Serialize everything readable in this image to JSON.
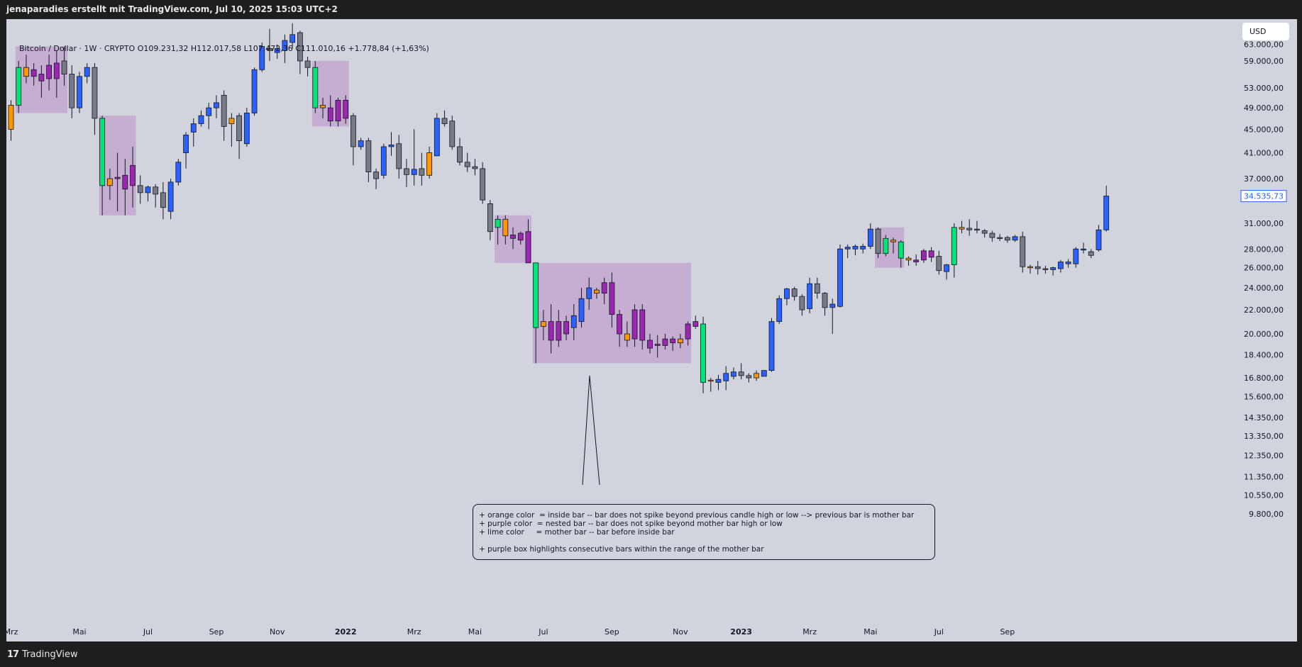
{
  "header": {
    "title": "jenaparadies erstellt mit TradingView.com, Jul 10, 2025 15:03 UTC+2"
  },
  "legend": {
    "symbol": "Bitcoin / Dollar · 1W · CRYPTO",
    "open": "O109.231,32",
    "high": "H112.017,58",
    "low": "L107.472,36",
    "close": "C111.010,16",
    "change": "+1.778,84 (+1,63%)"
  },
  "currency_button": "USD",
  "footer": {
    "logo_mark": "17",
    "logo_text": "TradingView"
  },
  "note": {
    "lines": [
      "+ orange color  = inside bar -- bar does not spike beyond previous candle high or low --> previous bar is mother bar",
      "+ purple color  = nested bar -- bar does not spike beyond mother bar high or low",
      "+ lime color     = mother bar -- bar before inside bar",
      "+ purple box highlights consecutive bars within the range of the mother bar"
    ]
  },
  "colors": {
    "background": "#d1d4dc",
    "bull": "#2962ff",
    "bear": "#787b86",
    "inside": "#ff9800",
    "nested": "#9c27b0",
    "mother": "#00e676",
    "box": "rgba(156,39,176,0.22)",
    "price_tag": "#2962ff"
  },
  "chart_data": {
    "type": "candlestick",
    "timeframe": "1W",
    "scale": "log",
    "y_ticks": [
      "63.000,00",
      "59.000,00",
      "53.000,00",
      "49.000,00",
      "45.000,00",
      "41.000,00",
      "37.000,00",
      "31.000,00",
      "28.000,00",
      "26.000,00",
      "24.000,00",
      "22.000,00",
      "20.000,00",
      "18.400,00",
      "16.800,00",
      "15.600,00",
      "14.350,00",
      "13.350,00",
      "12.350,00",
      "11.350,00",
      "10.550,00",
      "9.800,00"
    ],
    "y_tick_values": [
      63000,
      59000,
      53000,
      49000,
      45000,
      41000,
      37000,
      31000,
      28000,
      26000,
      24000,
      22000,
      20000,
      18400,
      16800,
      15600,
      14350,
      13350,
      12350,
      11350,
      10550,
      9800
    ],
    "last_price": "34.535,73",
    "last_price_value": 34535.73,
    "x_ticks": [
      {
        "label": "Mrz",
        "index": 0,
        "bold": false
      },
      {
        "label": "Mai",
        "index": 9,
        "bold": false
      },
      {
        "label": "Jul",
        "index": 18,
        "bold": false
      },
      {
        "label": "Sep",
        "index": 27,
        "bold": false
      },
      {
        "label": "Nov",
        "index": 35,
        "bold": false
      },
      {
        "label": "2022",
        "index": 44,
        "bold": true
      },
      {
        "label": "Mrz",
        "index": 53,
        "bold": false
      },
      {
        "label": "Mai",
        "index": 61,
        "bold": false
      },
      {
        "label": "Jul",
        "index": 70,
        "bold": false
      },
      {
        "label": "Sep",
        "index": 79,
        "bold": false
      },
      {
        "label": "Nov",
        "index": 88,
        "bold": false
      },
      {
        "label": "2023",
        "index": 96,
        "bold": true
      },
      {
        "label": "Mrz",
        "index": 105,
        "bold": false
      },
      {
        "label": "Mai",
        "index": 113,
        "bold": false
      },
      {
        "label": "Jul",
        "index": 122,
        "bold": false
      },
      {
        "label": "Sep",
        "index": 131,
        "bold": false
      }
    ],
    "candles": [
      [
        45000,
        49500,
        43000,
        50500,
        "inside"
      ],
      [
        49500,
        57500,
        48000,
        59000,
        "mother"
      ],
      [
        57500,
        55500,
        54000,
        60500,
        "inside"
      ],
      [
        55500,
        57000,
        53500,
        58500,
        "nested"
      ],
      [
        56000,
        54500,
        51000,
        58000,
        "nested"
      ],
      [
        55000,
        58000,
        52500,
        60500,
        "nested"
      ],
      [
        58500,
        55000,
        51000,
        61500,
        "nested"
      ],
      [
        59000,
        56000,
        53500,
        62500,
        "bear"
      ],
      [
        56000,
        49000,
        47000,
        58000,
        "bear"
      ],
      [
        49000,
        55500,
        48000,
        56500,
        "bull"
      ],
      [
        55500,
        57500,
        54000,
        58500,
        "bull"
      ],
      [
        57500,
        47000,
        44000,
        58500,
        "bear"
      ],
      [
        47000,
        36000,
        32000,
        47500,
        "mother"
      ],
      [
        36000,
        37000,
        34000,
        38500,
        "inside"
      ],
      [
        37000,
        37200,
        32500,
        41000,
        "nested"
      ],
      [
        37500,
        35500,
        32000,
        40000,
        "nested"
      ],
      [
        39000,
        36000,
        33000,
        42000,
        "nested"
      ],
      [
        36000,
        35000,
        33500,
        37500,
        "bear"
      ],
      [
        35000,
        35800,
        33800,
        36000,
        "bull"
      ],
      [
        35800,
        34800,
        33000,
        36200,
        "bear"
      ],
      [
        35000,
        33000,
        31500,
        36500,
        "bear"
      ],
      [
        32500,
        36500,
        31500,
        37000,
        "bull"
      ],
      [
        36500,
        39500,
        36000,
        40000,
        "bull"
      ],
      [
        41000,
        44000,
        38500,
        44500,
        "bull"
      ],
      [
        44500,
        46000,
        42000,
        47000,
        "bull"
      ],
      [
        46000,
        47500,
        45500,
        48500,
        "bull"
      ],
      [
        47500,
        49000,
        45000,
        50000,
        "bull"
      ],
      [
        49000,
        50000,
        47000,
        51500,
        "bull"
      ],
      [
        51500,
        45500,
        43000,
        52500,
        "bear"
      ],
      [
        46000,
        47000,
        42000,
        48000,
        "inside"
      ],
      [
        47500,
        43000,
        40000,
        48000,
        "bear"
      ],
      [
        42500,
        48000,
        42000,
        49000,
        "bull"
      ],
      [
        48000,
        57000,
        47500,
        57500,
        "bull"
      ],
      [
        57000,
        62500,
        56500,
        63500,
        "bull"
      ],
      [
        62000,
        61500,
        59000,
        67000,
        "bear"
      ],
      [
        61000,
        62000,
        59500,
        63000,
        "bull"
      ],
      [
        61500,
        64000,
        58500,
        65500,
        "bull"
      ],
      [
        63500,
        65500,
        62000,
        68500,
        "bull"
      ],
      [
        66000,
        59000,
        56000,
        66500,
        "bear"
      ],
      [
        59000,
        57500,
        55500,
        60000,
        "bear"
      ],
      [
        57500,
        49000,
        48000,
        59000,
        "mother"
      ],
      [
        49000,
        49500,
        47000,
        51000,
        "inside"
      ],
      [
        49000,
        46500,
        45500,
        51500,
        "nested"
      ],
      [
        46500,
        50500,
        45500,
        51000,
        "nested"
      ],
      [
        50500,
        47000,
        46000,
        51500,
        "nested"
      ],
      [
        47500,
        42000,
        39000,
        48000,
        "bear"
      ],
      [
        42000,
        43000,
        41500,
        43500,
        "bull"
      ],
      [
        43000,
        38000,
        36500,
        43500,
        "bear"
      ],
      [
        38000,
        37000,
        35500,
        38500,
        "bear"
      ],
      [
        37500,
        42000,
        37000,
        42500,
        "bull"
      ],
      [
        42000,
        42300,
        40500,
        44500,
        "bull"
      ],
      [
        42500,
        38500,
        37000,
        44000,
        "bear"
      ],
      [
        38500,
        37600,
        35800,
        40000,
        "bear"
      ],
      [
        37600,
        38400,
        36000,
        45000,
        "bull"
      ],
      [
        38500,
        37500,
        36000,
        41000,
        "bear"
      ],
      [
        37500,
        41000,
        37000,
        42000,
        "inside"
      ],
      [
        40500,
        47000,
        40500,
        48000,
        "bull"
      ],
      [
        47000,
        46000,
        45500,
        48500,
        "bear"
      ],
      [
        46500,
        42000,
        41500,
        47500,
        "bear"
      ],
      [
        42000,
        39500,
        39000,
        43500,
        "bear"
      ],
      [
        39500,
        38800,
        38000,
        41000,
        "bear"
      ],
      [
        38800,
        38500,
        37500,
        40000,
        "bear"
      ],
      [
        38500,
        34000,
        33500,
        39500,
        "bear"
      ],
      [
        33500,
        30000,
        29000,
        34000,
        "bear"
      ],
      [
        30500,
        31500,
        28500,
        32000,
        "mother"
      ],
      [
        31500,
        29500,
        28500,
        32000,
        "inside"
      ],
      [
        29600,
        29200,
        28000,
        30500,
        "nested"
      ],
      [
        29000,
        29800,
        28500,
        30000,
        "nested"
      ],
      [
        30000,
        26500,
        26500,
        31500,
        "nested"
      ],
      [
        26500,
        20500,
        17800,
        26500,
        "mother"
      ],
      [
        20600,
        21000,
        19500,
        22000,
        "inside"
      ],
      [
        21000,
        19500,
        18500,
        22500,
        "nested"
      ],
      [
        19500,
        21000,
        19000,
        22000,
        "nested"
      ],
      [
        21000,
        20000,
        19500,
        21500,
        "nested"
      ],
      [
        20500,
        21500,
        19500,
        22500,
        "bull"
      ],
      [
        21000,
        23000,
        20500,
        24000,
        "bull"
      ],
      [
        23000,
        24000,
        22000,
        25000,
        "bull"
      ],
      [
        23500,
        23800,
        23000,
        24000,
        "inside"
      ],
      [
        23500,
        24500,
        22500,
        25000,
        "nested"
      ],
      [
        24500,
        21600,
        20500,
        25500,
        "nested"
      ],
      [
        21600,
        20000,
        19000,
        22000,
        "nested"
      ],
      [
        20000,
        19500,
        19000,
        21000,
        "inside"
      ],
      [
        19600,
        22000,
        19000,
        22500,
        "nested"
      ],
      [
        22000,
        19500,
        18800,
        22500,
        "nested"
      ],
      [
        19500,
        18900,
        18500,
        20000,
        "nested"
      ],
      [
        19200,
        19100,
        18200,
        19900,
        "nested"
      ],
      [
        19100,
        19600,
        18800,
        20000,
        "nested"
      ],
      [
        19600,
        19300,
        18700,
        19800,
        "nested"
      ],
      [
        19300,
        19600,
        18900,
        20000,
        "inside"
      ],
      [
        19600,
        20800,
        19100,
        21000,
        "nested"
      ],
      [
        20600,
        21000,
        20400,
        21500,
        "nested"
      ],
      [
        20800,
        16500,
        15800,
        21400,
        "mother"
      ],
      [
        16600,
        16650,
        15900,
        16800,
        "inside"
      ],
      [
        16700,
        16500,
        16000,
        17000,
        "bull"
      ],
      [
        16600,
        17100,
        16000,
        17600,
        "bull"
      ],
      [
        16900,
        17200,
        16700,
        17500,
        "bull"
      ],
      [
        17200,
        16950,
        16700,
        17800,
        "bear"
      ],
      [
        16950,
        16800,
        16500,
        17100,
        "bear"
      ],
      [
        16800,
        17100,
        16600,
        17300,
        "inside"
      ],
      [
        16900,
        17300,
        16900,
        17300,
        "bull"
      ],
      [
        17300,
        21000,
        17200,
        21300,
        "bull"
      ],
      [
        21000,
        23000,
        20800,
        23300,
        "bull"
      ],
      [
        23000,
        23900,
        22400,
        24000,
        "bull"
      ],
      [
        23900,
        23200,
        22800,
        24100,
        "bear"
      ],
      [
        23200,
        22000,
        21500,
        23400,
        "bear"
      ],
      [
        22100,
        24400,
        21700,
        25000,
        "bull"
      ],
      [
        24400,
        23500,
        23000,
        25000,
        "bear"
      ],
      [
        23500,
        22200,
        21500,
        23600,
        "bear"
      ],
      [
        22200,
        22500,
        20000,
        23000,
        "bull"
      ],
      [
        22300,
        28000,
        22200,
        28500,
        "bull"
      ],
      [
        28000,
        28200,
        27000,
        28500,
        "bull"
      ],
      [
        28300,
        28000,
        27300,
        28500,
        "bull"
      ],
      [
        28000,
        28300,
        27500,
        28600,
        "bull"
      ],
      [
        28300,
        30300,
        28000,
        31000,
        "bull"
      ],
      [
        30300,
        27500,
        27000,
        30500,
        "bear"
      ],
      [
        27500,
        29200,
        27200,
        29600,
        "mother"
      ],
      [
        29000,
        28800,
        27500,
        29300,
        "inside"
      ],
      [
        28800,
        27000,
        26000,
        29000,
        "mother"
      ],
      [
        27000,
        26800,
        26200,
        27200,
        "inside"
      ],
      [
        26600,
        26800,
        26200,
        27400,
        "nested"
      ],
      [
        26800,
        27800,
        26500,
        28000,
        "nested"
      ],
      [
        27800,
        27100,
        26600,
        28200,
        "nested"
      ],
      [
        27200,
        25700,
        25300,
        27800,
        "bear"
      ],
      [
        25600,
        26300,
        24800,
        26400,
        "bull"
      ],
      [
        26300,
        30500,
        25000,
        31000,
        "mother"
      ],
      [
        30500,
        30300,
        29800,
        31300,
        "inside"
      ],
      [
        30400,
        30200,
        29500,
        31500,
        "bear"
      ],
      [
        30300,
        30200,
        29800,
        31300,
        "bear"
      ],
      [
        30100,
        29800,
        29300,
        30300,
        "bear"
      ],
      [
        29800,
        29300,
        28800,
        30100,
        "bear"
      ],
      [
        29300,
        29300,
        28900,
        29700,
        "bear"
      ],
      [
        29300,
        29000,
        28700,
        29500,
        "bear"
      ],
      [
        29000,
        29400,
        28800,
        29600,
        "bull"
      ],
      [
        29400,
        26100,
        25500,
        30000,
        "bear"
      ],
      [
        26100,
        26100,
        25400,
        26300,
        "inside"
      ],
      [
        26100,
        25900,
        25300,
        26700,
        "bear"
      ],
      [
        25900,
        25900,
        25400,
        26200,
        "bear"
      ],
      [
        25800,
        26000,
        25200,
        26100,
        "bull"
      ],
      [
        25900,
        26600,
        25500,
        26800,
        "bull"
      ],
      [
        26600,
        26400,
        26000,
        26900,
        "bull"
      ],
      [
        26400,
        28000,
        26000,
        28200,
        "bull"
      ],
      [
        28000,
        27900,
        27500,
        28700,
        "bull"
      ],
      [
        27300,
        27700,
        27000,
        28000,
        "bear"
      ],
      [
        27900,
        30200,
        27700,
        30800,
        "bull"
      ],
      [
        30200,
        34535.73,
        30000,
        36000,
        "bull"
      ]
    ],
    "boxes": [
      {
        "from": 1,
        "to": 7
      },
      {
        "from": 12,
        "to": 16
      },
      {
        "from": 40,
        "to": 44
      },
      {
        "from": 64,
        "to": 68
      },
      {
        "from": 69,
        "to": 89
      },
      {
        "from": 114,
        "to": 117
      }
    ]
  }
}
